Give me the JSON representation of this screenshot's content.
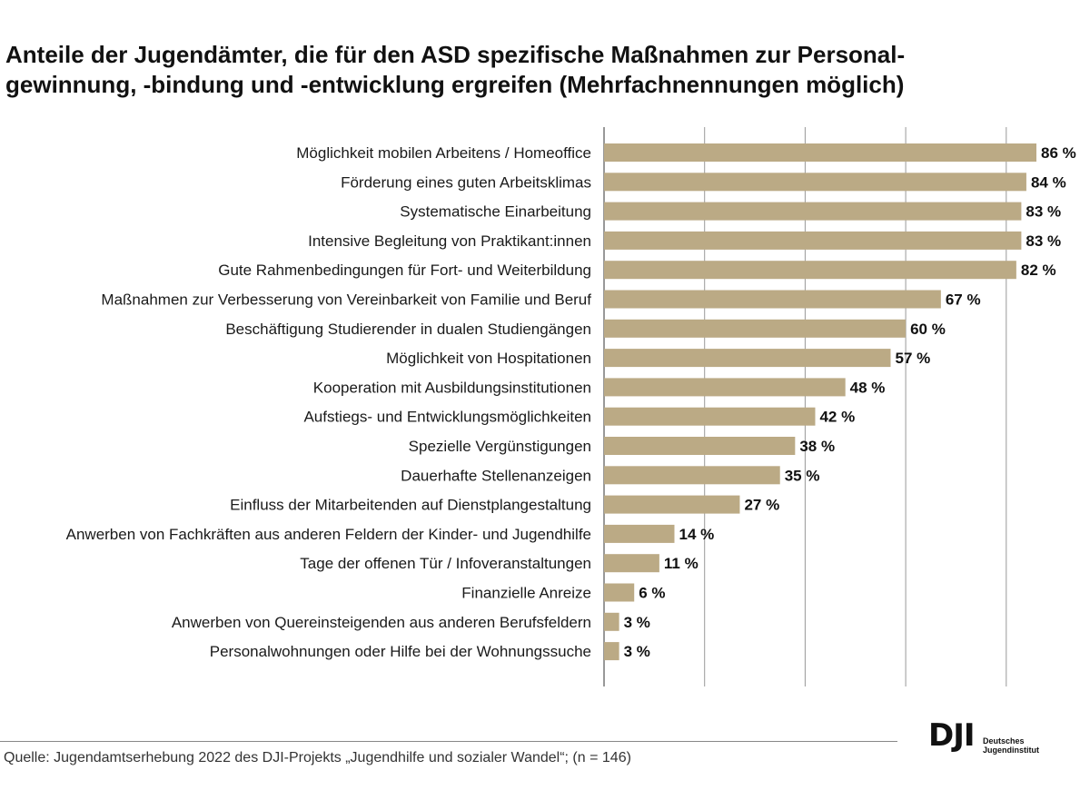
{
  "title_line1": "Anteile der Jugendämter, die für den ASD spezifische Maßnahmen zur Personal-",
  "title_line2": "gewinnung, -bindung und -entwicklung ergreifen (Mehrfachnennungen möglich)",
  "source": "Quelle: Jugendamtserhebung 2022 des DJI-Projekts „Jugendhilfe und sozialer Wandel“;  (n = 146)",
  "logo": {
    "mark": "DJI",
    "line1": "Deutsches",
    "line2": "Jugendinstitut"
  },
  "colors": {
    "bar": "#bbaa85",
    "grid": "#999999",
    "axis": "#555555"
  },
  "chart_data": {
    "type": "bar",
    "orientation": "horizontal",
    "title": "Anteile der Jugendämter, die für den ASD spezifische Maßnahmen zur Personalgewinnung, -bindung und -entwicklung ergreifen (Mehrfachnennungen möglich)",
    "xlim": [
      0,
      100
    ],
    "grid": true,
    "unit": "%",
    "categories": [
      "Möglichkeit mobilen Arbeitens / Homeoffice",
      "Förderung eines guten Arbeitsklimas",
      "Systematische Einarbeitung",
      "Intensive Begleitung von Praktikant:innen",
      "Gute Rahmenbedingungen für Fort- und Weiterbildung",
      "Maßnahmen zur Verbesserung von Vereinbarkeit von Familie und Beruf",
      "Beschäftigung Studierender in dualen Studiengängen",
      "Möglichkeit von Hospitationen",
      "Kooperation mit Ausbildungsinstitutionen",
      "Aufstiegs- und Entwicklungsmöglichkeiten",
      "Spezielle Vergünstigungen",
      "Dauerhafte Stellenanzeigen",
      "Einfluss der Mitarbeitenden auf Dienstplangestaltung",
      "Anwerben von Fachkräften aus anderen Feldern der Kinder- und Jugendhilfe",
      "Tage der offenen Tür / Infoveranstaltungen",
      "Finanzielle Anreize",
      "Anwerben von Quereinsteigenden aus anderen Berufsfeldern",
      "Personalwohnungen oder Hilfe bei der Wohnungssuche"
    ],
    "values": [
      86,
      84,
      83,
      83,
      82,
      67,
      60,
      57,
      48,
      42,
      38,
      35,
      27,
      14,
      11,
      6,
      3,
      3
    ],
    "value_labels": [
      "86 %",
      "84 %",
      "83 %",
      "83 %",
      "82 %",
      "67 %",
      "60 %",
      "57 %",
      "48 %",
      "42 %",
      "38 %",
      "35 %",
      "27 %",
      "14 %",
      "11 %",
      "6 %",
      "3 %",
      "3 %"
    ]
  }
}
